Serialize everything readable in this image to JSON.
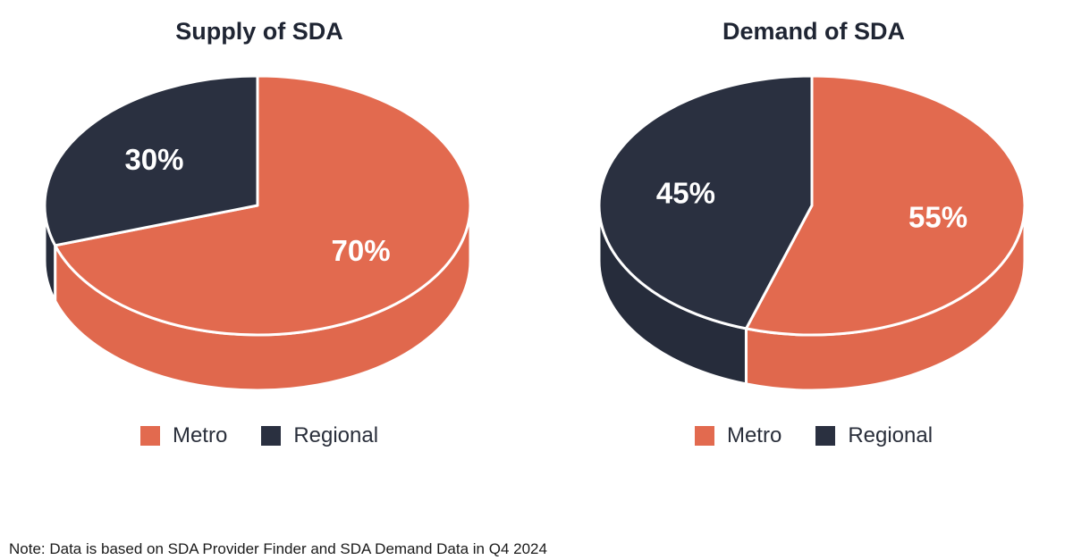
{
  "colors": {
    "metro": "#E26A4F",
    "regional": "#2A3040",
    "label": "#ffffff"
  },
  "chart_data": [
    {
      "type": "pie",
      "title": "Supply of SDA",
      "categories": [
        "Metro",
        "Regional"
      ],
      "values": [
        70,
        30
      ],
      "value_labels": [
        "70%",
        "30%"
      ],
      "legend": [
        "Metro",
        "Regional"
      ],
      "legend_placement": "bottom"
    },
    {
      "type": "pie",
      "title": "Demand of SDA",
      "categories": [
        "Metro",
        "Regional"
      ],
      "values": [
        55,
        45
      ],
      "value_labels": [
        "55%",
        "45%"
      ],
      "legend": [
        "Metro",
        "Regional"
      ],
      "legend_placement": "bottom"
    }
  ],
  "note": "Note: Data is based on SDA Provider Finder and SDA Demand Data in Q4 2024"
}
